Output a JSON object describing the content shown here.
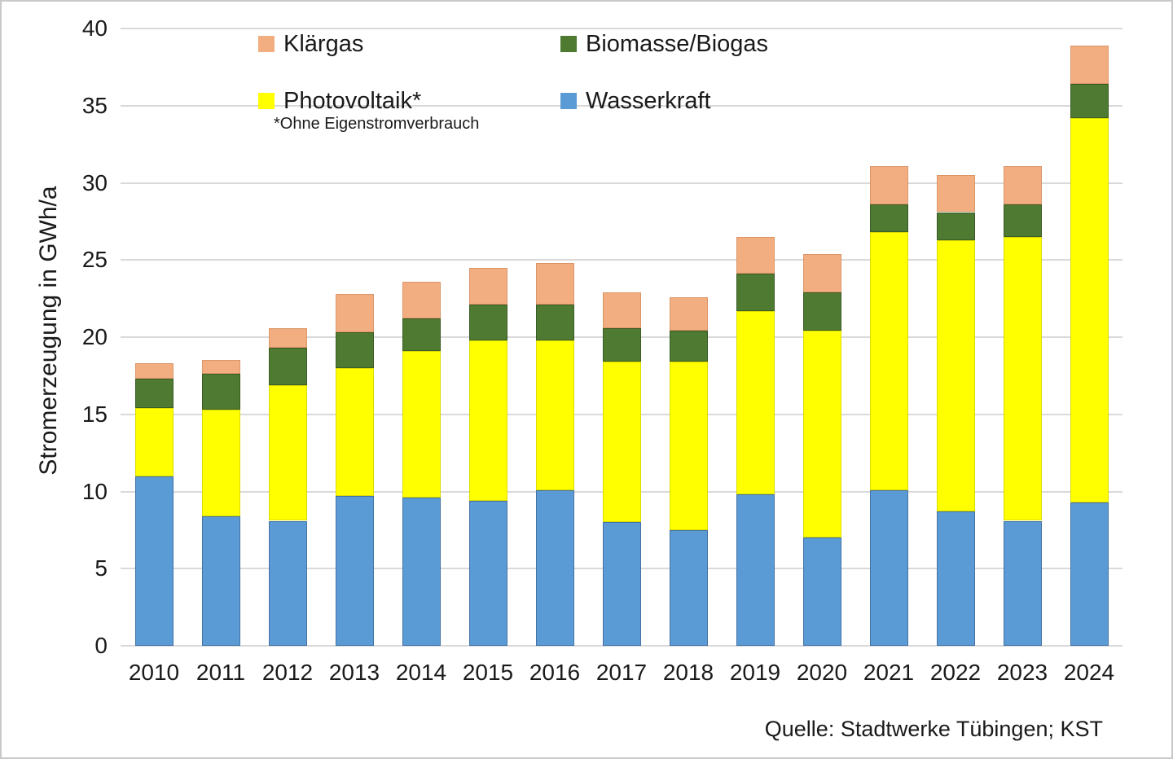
{
  "meta": {
    "source": "Quelle: Stadtwerke Tübingen; KST"
  },
  "colors": {
    "klaergas": "#F2AE81",
    "biomasse_biogas": "#4E7B31",
    "photovoltaik": "#FFFF00",
    "wasserkraft": "#5B9BD5",
    "gridline": "#D9D9D9",
    "text": "#1A1A1A",
    "frame_border": "#C9C9C9"
  },
  "legend": {
    "items": [
      {
        "label": "Klärgas",
        "color": "#F2AE81"
      },
      {
        "label": "Biomasse/Biogas",
        "color": "#4E7B31"
      },
      {
        "label": "Photovoltaik*",
        "color": "#FFFF00"
      },
      {
        "label": "Wasserkraft",
        "color": "#5B9BD5"
      }
    ],
    "footnote": "*Ohne Eigenstromverbrauch"
  },
  "chart_data": {
    "type": "bar",
    "stacked": true,
    "title": "",
    "xlabel": "",
    "ylabel": "Stromerzeugung in GWh/a",
    "unit": "GWh/a",
    "ylim": [
      0,
      40
    ],
    "ytick_step": 5,
    "grid": true,
    "legend_position": "top-inside",
    "categories": [
      "2010",
      "2011",
      "2012",
      "2013",
      "2014",
      "2015",
      "2016",
      "2017",
      "2018",
      "2019",
      "2020",
      "2021",
      "2022",
      "2023",
      "2024"
    ],
    "series": [
      {
        "name": "Wasserkraft",
        "color": "#5B9BD5",
        "border_color": "#4472A4",
        "values": [
          11.0,
          8.4,
          8.1,
          9.7,
          9.6,
          9.4,
          10.1,
          8.0,
          7.5,
          9.8,
          7.0,
          10.1,
          8.7,
          8.1,
          9.3
        ]
      },
      {
        "name": "Photovoltaik*",
        "color": "#FFFF00",
        "border_color": "#DBDB00",
        "values": [
          4.4,
          6.9,
          8.8,
          8.3,
          9.5,
          10.4,
          9.7,
          10.4,
          10.9,
          11.9,
          13.4,
          16.7,
          17.6,
          18.4,
          24.9
        ]
      },
      {
        "name": "Biomasse/Biogas",
        "color": "#4E7B31",
        "border_color": "#3A5B24",
        "values": [
          1.9,
          2.3,
          2.4,
          2.3,
          2.1,
          2.3,
          2.3,
          2.2,
          2.0,
          2.4,
          2.5,
          1.8,
          1.8,
          2.1,
          2.2
        ]
      },
      {
        "name": "Klärgas",
        "color": "#F2AE81",
        "border_color": "#DB9668",
        "values": [
          1.0,
          0.9,
          1.3,
          2.5,
          2.4,
          2.4,
          2.7,
          2.3,
          2.2,
          2.4,
          2.5,
          2.5,
          2.4,
          2.5,
          2.5
        ]
      }
    ],
    "stack_totals": [
      18.3,
      18.5,
      20.6,
      22.8,
      23.6,
      24.5,
      24.8,
      22.9,
      22.6,
      26.5,
      25.4,
      31.1,
      30.5,
      31.1,
      38.9
    ]
  }
}
